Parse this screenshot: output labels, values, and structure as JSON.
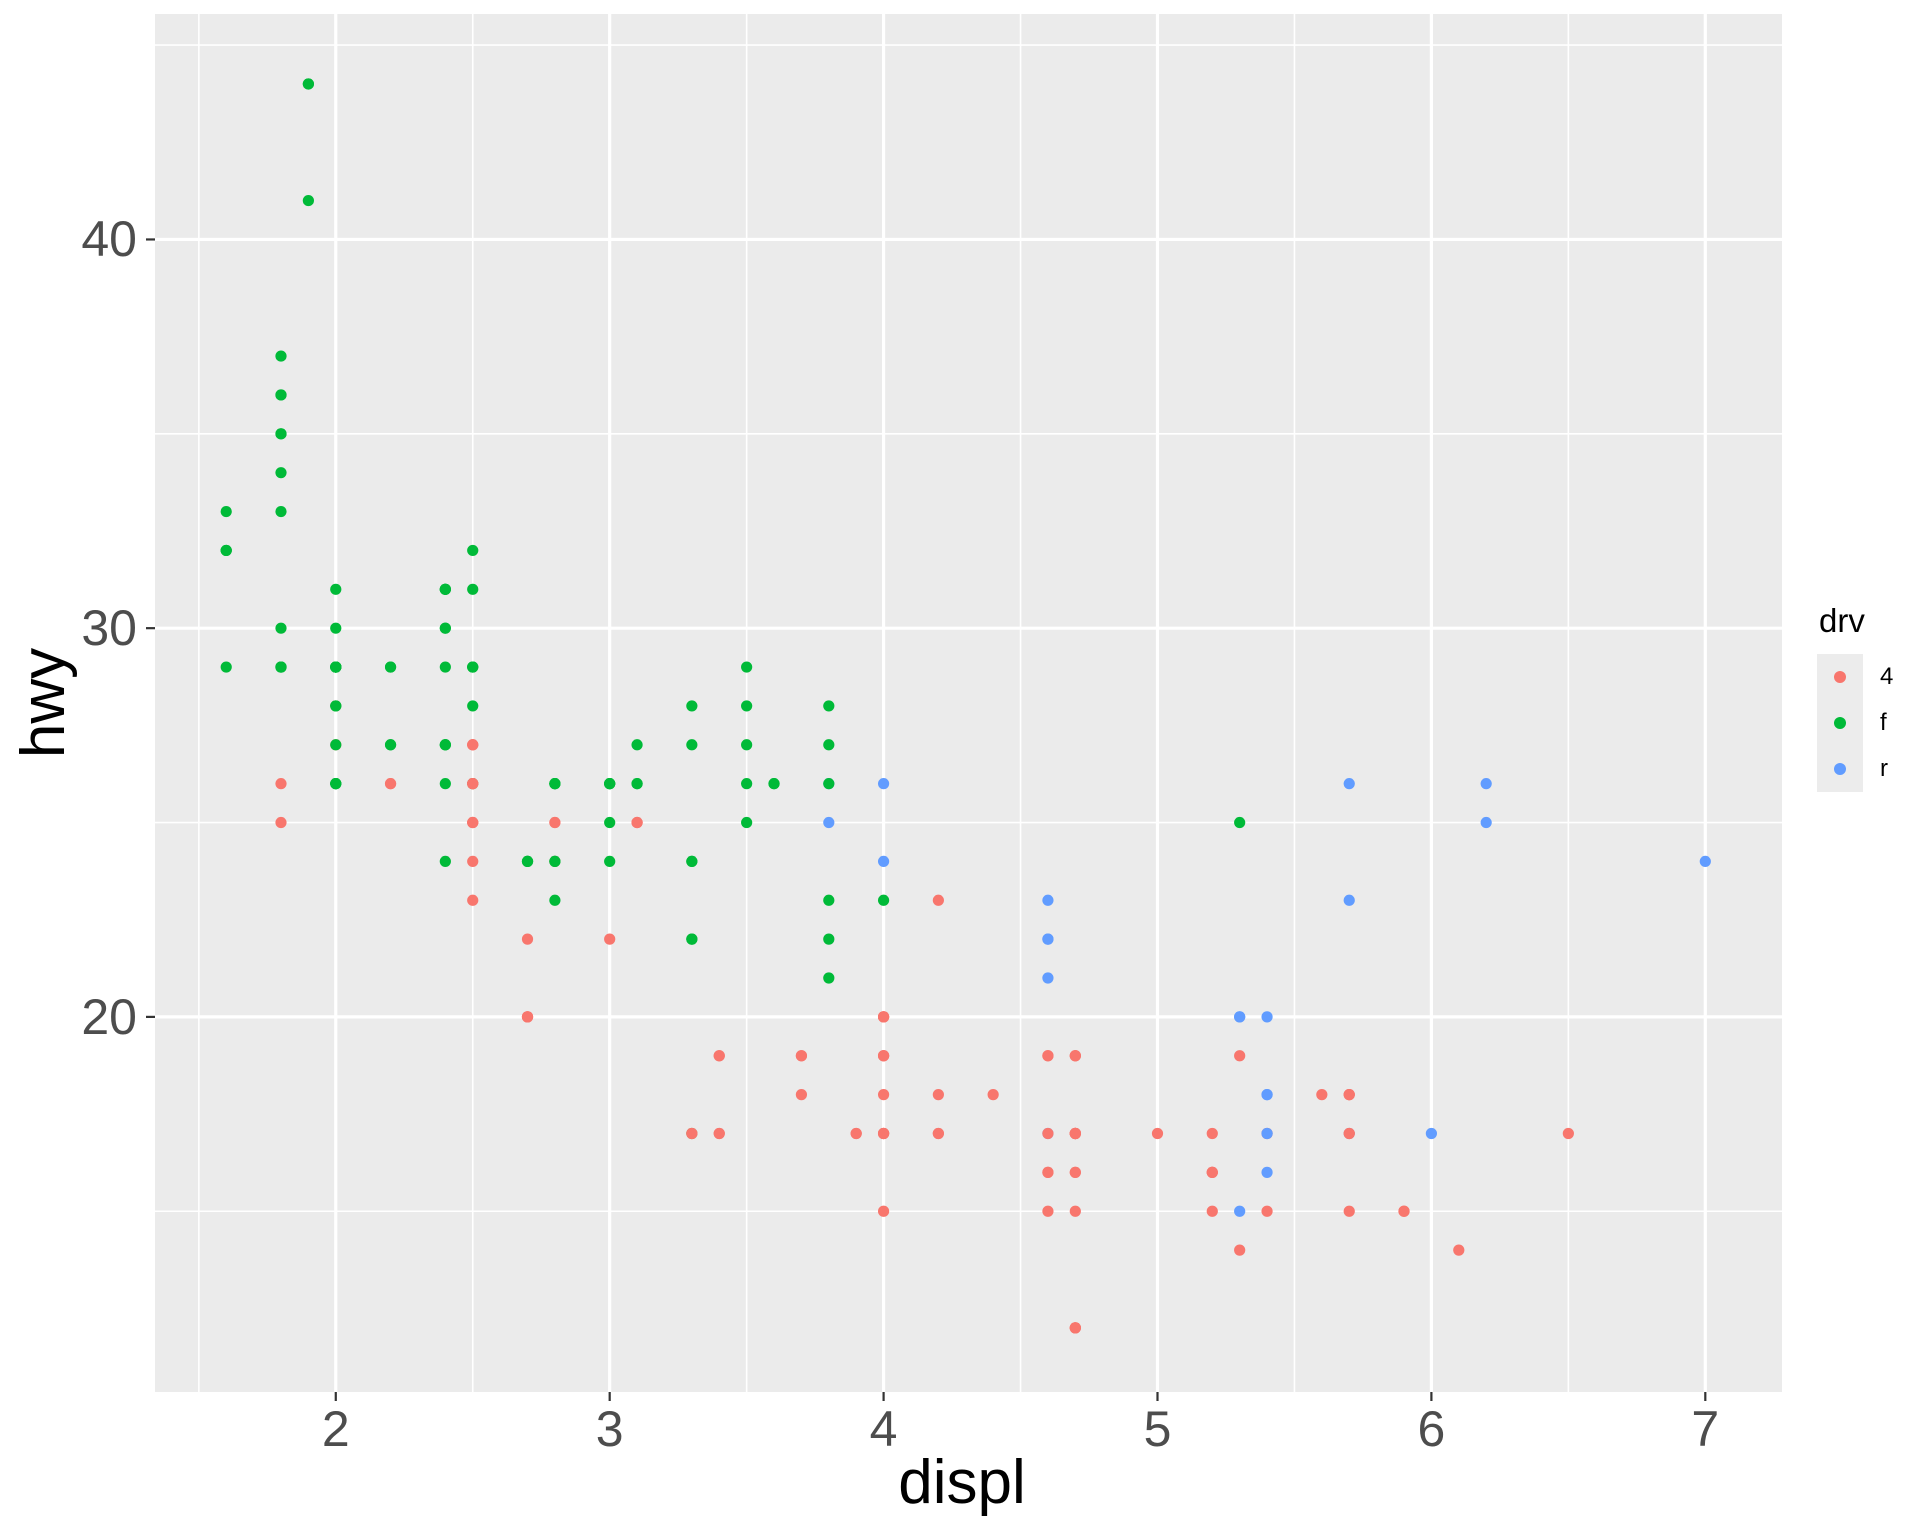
{
  "page": {
    "background": "#FFFFFF"
  },
  "legend": {
    "title": "drv",
    "items": [
      {
        "label": "4",
        "color": "#F8766D"
      },
      {
        "label": "f",
        "color": "#00BA38"
      },
      {
        "label": "r",
        "color": "#619CFF"
      }
    ]
  },
  "chart_data": {
    "type": "scatter",
    "title": "",
    "xlabel": "displ",
    "ylabel": "hwy",
    "xlim": [
      1.34,
      7.28
    ],
    "ylim": [
      10.35,
      45.8
    ],
    "x_ticks": [
      2,
      3,
      4,
      5,
      6,
      7
    ],
    "y_ticks": [
      20,
      30,
      40
    ],
    "x_minor_ticks": [
      1.5,
      2.5,
      3.5,
      4.5,
      5.5,
      6.5
    ],
    "y_minor_ticks": [
      15,
      25,
      35,
      45
    ],
    "grid": "white major and minor gridlines on grey panel",
    "panel_color": "#EBEBEB",
    "grid_color": "#FFFFFF",
    "tick_mark_color": "#333333",
    "tick_label_color": "#4D4D4D",
    "legend_position": "right",
    "legend_title": "drv",
    "point_radius": 5.6,
    "series": [
      {
        "name": "4",
        "color": "#F8766D"
      },
      {
        "name": "f",
        "color": "#00BA38"
      },
      {
        "name": "r",
        "color": "#619CFF"
      }
    ],
    "points": [
      [
        1.8,
        29,
        "f"
      ],
      [
        1.8,
        29,
        "f"
      ],
      [
        2,
        31,
        "f"
      ],
      [
        2,
        30,
        "f"
      ],
      [
        2.8,
        26,
        "f"
      ],
      [
        2.8,
        26,
        "f"
      ],
      [
        3.1,
        27,
        "f"
      ],
      [
        1.8,
        26,
        "4"
      ],
      [
        1.8,
        25,
        "4"
      ],
      [
        2,
        28,
        "4"
      ],
      [
        2,
        27,
        "4"
      ],
      [
        2.8,
        25,
        "4"
      ],
      [
        2.8,
        25,
        "4"
      ],
      [
        3.1,
        25,
        "4"
      ],
      [
        3.1,
        25,
        "4"
      ],
      [
        2.8,
        24,
        "4"
      ],
      [
        3.1,
        25,
        "4"
      ],
      [
        4.2,
        23,
        "4"
      ],
      [
        5.3,
        20,
        "r"
      ],
      [
        5.3,
        15,
        "r"
      ],
      [
        5.3,
        20,
        "r"
      ],
      [
        5.7,
        17,
        "r"
      ],
      [
        6,
        17,
        "r"
      ],
      [
        5.7,
        26,
        "r"
      ],
      [
        5.7,
        23,
        "r"
      ],
      [
        6.2,
        26,
        "r"
      ],
      [
        6.2,
        25,
        "r"
      ],
      [
        7,
        24,
        "r"
      ],
      [
        5.3,
        19,
        "4"
      ],
      [
        5.3,
        14,
        "4"
      ],
      [
        5.7,
        15,
        "4"
      ],
      [
        6.5,
        17,
        "4"
      ],
      [
        2.4,
        27,
        "f"
      ],
      [
        2.4,
        30,
        "f"
      ],
      [
        3.1,
        26,
        "f"
      ],
      [
        3.5,
        29,
        "f"
      ],
      [
        3.6,
        26,
        "f"
      ],
      [
        2.4,
        24,
        "f"
      ],
      [
        3,
        24,
        "f"
      ],
      [
        3.3,
        22,
        "f"
      ],
      [
        3.3,
        22,
        "f"
      ],
      [
        3.3,
        24,
        "f"
      ],
      [
        3.3,
        24,
        "f"
      ],
      [
        3.3,
        17,
        "f"
      ],
      [
        3.8,
        22,
        "f"
      ],
      [
        3.8,
        21,
        "f"
      ],
      [
        3.8,
        23,
        "f"
      ],
      [
        4,
        23,
        "f"
      ],
      [
        3.7,
        19,
        "4"
      ],
      [
        3.7,
        18,
        "4"
      ],
      [
        3.9,
        17,
        "4"
      ],
      [
        3.9,
        17,
        "4"
      ],
      [
        4.7,
        19,
        "4"
      ],
      [
        4.7,
        19,
        "4"
      ],
      [
        4.7,
        12,
        "4"
      ],
      [
        5.2,
        17,
        "4"
      ],
      [
        5.2,
        16,
        "4"
      ],
      [
        4.7,
        17,
        "4"
      ],
      [
        4.7,
        17,
        "4"
      ],
      [
        4.7,
        12,
        "4"
      ],
      [
        4.7,
        17,
        "4"
      ],
      [
        5.2,
        16,
        "4"
      ],
      [
        5.7,
        18,
        "4"
      ],
      [
        5.9,
        15,
        "4"
      ],
      [
        4.7,
        17,
        "4"
      ],
      [
        4.7,
        16,
        "4"
      ],
      [
        4.7,
        17,
        "4"
      ],
      [
        4.7,
        12,
        "4"
      ],
      [
        4.7,
        16,
        "4"
      ],
      [
        4.7,
        17,
        "4"
      ],
      [
        5.2,
        16,
        "4"
      ],
      [
        5.2,
        15,
        "4"
      ],
      [
        5.7,
        17,
        "4"
      ],
      [
        5.9,
        15,
        "4"
      ],
      [
        4.6,
        17,
        "r"
      ],
      [
        5.4,
        17,
        "r"
      ],
      [
        5.4,
        18,
        "r"
      ],
      [
        4,
        17,
        "4"
      ],
      [
        4,
        19,
        "4"
      ],
      [
        4,
        17,
        "4"
      ],
      [
        4,
        19,
        "4"
      ],
      [
        4,
        17,
        "4"
      ],
      [
        4.6,
        19,
        "4"
      ],
      [
        4.2,
        17,
        "4"
      ],
      [
        4.2,
        17,
        "4"
      ],
      [
        4.6,
        16,
        "4"
      ],
      [
        4.6,
        16,
        "4"
      ],
      [
        4.6,
        17,
        "4"
      ],
      [
        5.4,
        15,
        "4"
      ],
      [
        5.4,
        17,
        "4"
      ],
      [
        3.8,
        26,
        "r"
      ],
      [
        3.8,
        25,
        "r"
      ],
      [
        4,
        26,
        "r"
      ],
      [
        4,
        24,
        "r"
      ],
      [
        4.6,
        21,
        "r"
      ],
      [
        4.6,
        22,
        "r"
      ],
      [
        4.6,
        23,
        "r"
      ],
      [
        4.6,
        22,
        "r"
      ],
      [
        5.4,
        20,
        "r"
      ],
      [
        1.6,
        33,
        "f"
      ],
      [
        1.6,
        32,
        "f"
      ],
      [
        1.6,
        32,
        "f"
      ],
      [
        1.6,
        29,
        "f"
      ],
      [
        1.6,
        32,
        "f"
      ],
      [
        1.8,
        34,
        "f"
      ],
      [
        1.8,
        36,
        "f"
      ],
      [
        1.8,
        36,
        "f"
      ],
      [
        2,
        29,
        "f"
      ],
      [
        2.4,
        26,
        "f"
      ],
      [
        2.4,
        27,
        "f"
      ],
      [
        2.4,
        30,
        "f"
      ],
      [
        2.4,
        31,
        "f"
      ],
      [
        2.5,
        26,
        "f"
      ],
      [
        2.5,
        26,
        "f"
      ],
      [
        3.3,
        28,
        "f"
      ],
      [
        2,
        26,
        "f"
      ],
      [
        2,
        29,
        "f"
      ],
      [
        2,
        28,
        "f"
      ],
      [
        2,
        27,
        "f"
      ],
      [
        2.7,
        24,
        "f"
      ],
      [
        2.7,
        24,
        "f"
      ],
      [
        2.7,
        24,
        "f"
      ],
      [
        3,
        22,
        "4"
      ],
      [
        3.7,
        19,
        "4"
      ],
      [
        4,
        20,
        "4"
      ],
      [
        4.7,
        17,
        "4"
      ],
      [
        4.7,
        12,
        "4"
      ],
      [
        4.7,
        19,
        "4"
      ],
      [
        5.7,
        18,
        "4"
      ],
      [
        6.1,
        14,
        "4"
      ],
      [
        4,
        15,
        "4"
      ],
      [
        4.2,
        18,
        "4"
      ],
      [
        4.4,
        18,
        "4"
      ],
      [
        4.6,
        15,
        "4"
      ],
      [
        5.4,
        17,
        "r"
      ],
      [
        5.4,
        16,
        "r"
      ],
      [
        5.4,
        18,
        "r"
      ],
      [
        4,
        17,
        "4"
      ],
      [
        4,
        19,
        "4"
      ],
      [
        4.6,
        19,
        "4"
      ],
      [
        5,
        17,
        "4"
      ],
      [
        2.4,
        29,
        "f"
      ],
      [
        2.4,
        27,
        "f"
      ],
      [
        2.5,
        31,
        "f"
      ],
      [
        2.5,
        32,
        "f"
      ],
      [
        3.5,
        27,
        "f"
      ],
      [
        3.5,
        26,
        "f"
      ],
      [
        3,
        26,
        "f"
      ],
      [
        3,
        25,
        "f"
      ],
      [
        3.5,
        25,
        "f"
      ],
      [
        3.3,
        17,
        "4"
      ],
      [
        3.3,
        17,
        "4"
      ],
      [
        4,
        20,
        "4"
      ],
      [
        5.6,
        18,
        "4"
      ],
      [
        3.1,
        26,
        "f"
      ],
      [
        3.8,
        26,
        "f"
      ],
      [
        3.8,
        27,
        "f"
      ],
      [
        3.8,
        28,
        "f"
      ],
      [
        5.3,
        25,
        "f"
      ],
      [
        2.5,
        25,
        "4"
      ],
      [
        2.5,
        24,
        "4"
      ],
      [
        2.5,
        27,
        "4"
      ],
      [
        2.5,
        25,
        "4"
      ],
      [
        2.5,
        26,
        "4"
      ],
      [
        2.5,
        23,
        "4"
      ],
      [
        2.2,
        26,
        "4"
      ],
      [
        2.2,
        26,
        "4"
      ],
      [
        2.5,
        26,
        "4"
      ],
      [
        2.5,
        26,
        "4"
      ],
      [
        2.5,
        27,
        "4"
      ],
      [
        2.5,
        25,
        "4"
      ],
      [
        2.5,
        27,
        "4"
      ],
      [
        2.5,
        26,
        "4"
      ],
      [
        2.7,
        20,
        "4"
      ],
      [
        2.7,
        20,
        "4"
      ],
      [
        3.4,
        19,
        "4"
      ],
      [
        3.4,
        17,
        "4"
      ],
      [
        4,
        20,
        "4"
      ],
      [
        4.7,
        17,
        "4"
      ],
      [
        2.2,
        29,
        "f"
      ],
      [
        2.2,
        27,
        "f"
      ],
      [
        2.4,
        31,
        "f"
      ],
      [
        2.4,
        31,
        "f"
      ],
      [
        3,
        26,
        "f"
      ],
      [
        3,
        26,
        "f"
      ],
      [
        3.5,
        28,
        "f"
      ],
      [
        2.2,
        27,
        "f"
      ],
      [
        2.2,
        29,
        "f"
      ],
      [
        2.4,
        31,
        "f"
      ],
      [
        3,
        26,
        "f"
      ],
      [
        3.3,
        27,
        "f"
      ],
      [
        1.8,
        30,
        "f"
      ],
      [
        1.8,
        33,
        "f"
      ],
      [
        1.8,
        35,
        "f"
      ],
      [
        1.8,
        37,
        "f"
      ],
      [
        1.8,
        35,
        "f"
      ],
      [
        4.7,
        15,
        "4"
      ],
      [
        5.7,
        18,
        "4"
      ],
      [
        4.7,
        17,
        "4"
      ],
      [
        5.7,
        17,
        "4"
      ],
      [
        2.7,
        20,
        "4"
      ],
      [
        2.7,
        20,
        "4"
      ],
      [
        2.7,
        22,
        "4"
      ],
      [
        3.4,
        17,
        "4"
      ],
      [
        3.4,
        19,
        "4"
      ],
      [
        4,
        18,
        "4"
      ],
      [
        4,
        20,
        "4"
      ],
      [
        2,
        29,
        "f"
      ],
      [
        2,
        26,
        "f"
      ],
      [
        2,
        29,
        "f"
      ],
      [
        2,
        29,
        "f"
      ],
      [
        2.8,
        24,
        "f"
      ],
      [
        1.9,
        44,
        "f"
      ],
      [
        2,
        29,
        "f"
      ],
      [
        2,
        26,
        "f"
      ],
      [
        2,
        29,
        "f"
      ],
      [
        2,
        29,
        "f"
      ],
      [
        2.5,
        29,
        "f"
      ],
      [
        2.5,
        29,
        "f"
      ],
      [
        2.8,
        23,
        "f"
      ],
      [
        2.8,
        24,
        "f"
      ],
      [
        1.9,
        44,
        "f"
      ],
      [
        1.9,
        41,
        "f"
      ],
      [
        2,
        29,
        "f"
      ],
      [
        2,
        26,
        "f"
      ],
      [
        2.5,
        28,
        "f"
      ],
      [
        2.5,
        29,
        "f"
      ],
      [
        1.8,
        29,
        "f"
      ],
      [
        1.8,
        29,
        "f"
      ],
      [
        2,
        28,
        "f"
      ],
      [
        2,
        29,
        "f"
      ],
      [
        2.8,
        26,
        "f"
      ],
      [
        2.8,
        26,
        "f"
      ],
      [
        3.6,
        26,
        "f"
      ]
    ]
  }
}
